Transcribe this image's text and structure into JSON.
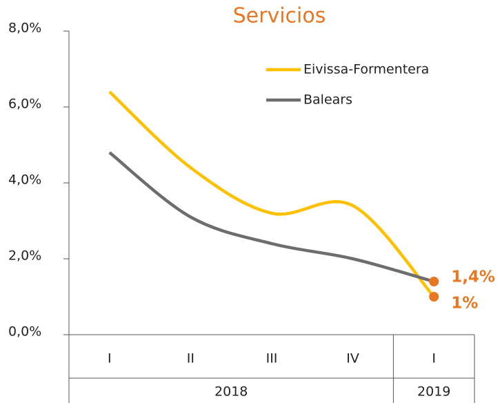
{
  "chart_data": {
    "type": "line",
    "title": "Servicios",
    "groups": [
      {
        "label": "2018",
        "categories": [
          "I",
          "II",
          "III",
          "IV"
        ]
      },
      {
        "label": "2019",
        "categories": [
          "I"
        ]
      }
    ],
    "series": [
      {
        "name": "Eivissa-Formentera",
        "color": "#ffc000",
        "values": [
          6.4,
          4.4,
          3.2,
          3.4,
          1.0
        ],
        "value_labels": [
          null,
          null,
          null,
          null,
          "1%"
        ]
      },
      {
        "name": "Balears",
        "color": "#6d6d6d",
        "values": [
          4.8,
          3.1,
          2.4,
          2.0,
          1.4
        ],
        "value_labels": [
          null,
          null,
          null,
          null,
          "1,4%"
        ]
      }
    ],
    "marker_color": "#e87722",
    "ylim": [
      0,
      8
    ],
    "yticks": [
      {
        "value": 0,
        "label": "0,0%"
      },
      {
        "value": 2,
        "label": "2,0%"
      },
      {
        "value": 4,
        "label": "4,0%"
      },
      {
        "value": 6,
        "label": "6,0%"
      },
      {
        "value": 8,
        "label": "8,0%"
      }
    ],
    "legend": "upper right",
    "grid": false,
    "smooth": true
  }
}
